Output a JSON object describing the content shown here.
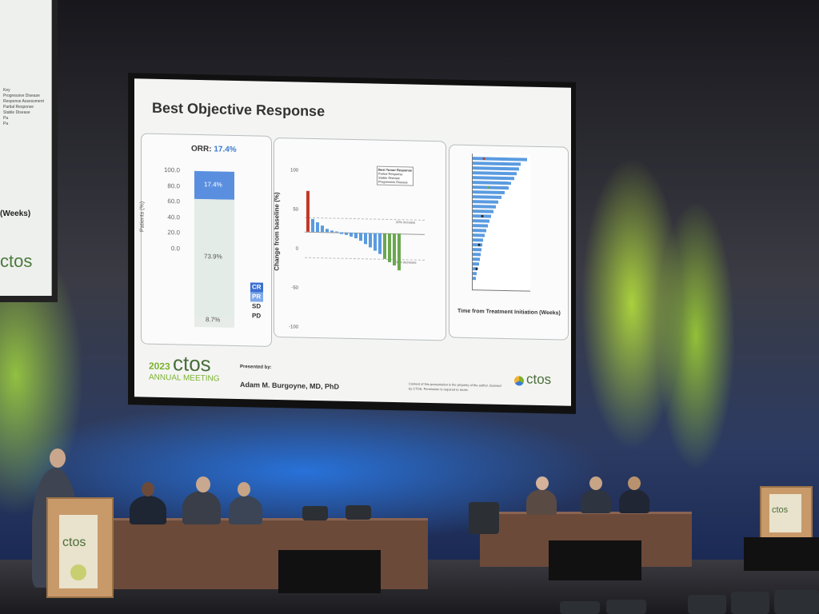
{
  "slide": {
    "title": "Best Objective Response",
    "orr_label": "ORR:",
    "orr_value": "17.4%",
    "y_ticks_left": [
      "100.0",
      "80.0",
      "60.0",
      "40.0",
      "20.0",
      "0.0"
    ],
    "y_label_left": "Patients (%)",
    "stack_labels": {
      "pr": "17.4%",
      "sd": "73.9%",
      "pd": "8.7%"
    },
    "legend_right": [
      "CR",
      "PR",
      "SD",
      "PD"
    ],
    "waterfall": {
      "y_label": "Change from baseline (%)",
      "y_ticks": [
        "100",
        "50",
        "0",
        "-50",
        "-100"
      ],
      "legend_title": "Best Tumor Response",
      "legend_items": [
        "Partial Response",
        "Stable Disease",
        "Progressive Disease"
      ],
      "line_increase": "20% increase",
      "line_decrease": "30% decrease"
    },
    "swimmer": {
      "x_label": "Time from Treatment Initiation (Weeks)"
    },
    "footer": {
      "year": "2023",
      "brand": "ctos",
      "meeting": "ANNUAL MEETING",
      "presented_by": "Presented by:",
      "presenter": "Adam M. Burgoyne, MD, PhD",
      "notice": "Content of this presentation is the property of the author, licensed by CTOS. Permission is required to reuse.",
      "logo_text": "ctos"
    }
  },
  "left_screen": {
    "legend_lines": [
      "Key",
      "Progressive Disease",
      "Response Assessment",
      "Partial Response",
      "Stable Disease",
      "Pa",
      "Pa"
    ],
    "weeks": "(Weeks)",
    "logo": "ctos"
  },
  "podium": {
    "logo": "ctos"
  },
  "colors": {
    "accent_blue": "#3b7bd4",
    "sd_green": "#6aa84f",
    "pd_red": "#c0392b",
    "ctos_green": "#7bb22f"
  }
}
